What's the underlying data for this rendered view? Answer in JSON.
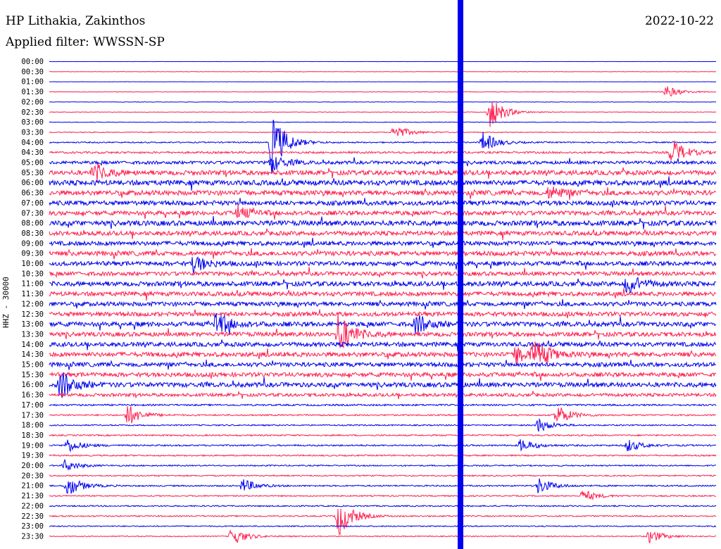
{
  "header": {
    "station": "HP Lithakia, Zakinthos",
    "filter": "Applied filter: WWSSN-SP",
    "date": "2022-10-22"
  },
  "axis_label": "HHZ - 30000",
  "colors": {
    "trace_a": "#0000ee",
    "trace_b": "#ff1e4f",
    "text": "#000000"
  },
  "chart_data": {
    "type": "line",
    "ylabel": "HHZ - 30000",
    "row_labels": [
      "00:00",
      "00:30",
      "01:00",
      "01:30",
      "02:00",
      "02:30",
      "03:00",
      "03:30",
      "04:00",
      "04:30",
      "05:00",
      "05:30",
      "06:00",
      "06:30",
      "07:00",
      "07:30",
      "08:00",
      "08:30",
      "09:00",
      "09:30",
      "10:00",
      "10:30",
      "11:00",
      "11:30",
      "12:00",
      "12:30",
      "13:00",
      "13:30",
      "14:00",
      "14:30",
      "15:00",
      "15:30",
      "16:00",
      "16:30",
      "17:00",
      "17:30",
      "18:00",
      "18:30",
      "19:00",
      "19:30",
      "20:00",
      "20:30",
      "21:00",
      "21:30",
      "22:00",
      "22:30",
      "23:00",
      "23:30"
    ],
    "row_noise": [
      0.15,
      0.3,
      0.25,
      0.4,
      0.3,
      0.4,
      0.4,
      0.6,
      0.9,
      1.4,
      2.2,
      3.2,
      3.5,
      3.4,
      3.2,
      3.0,
      3.5,
      3.0,
      3.0,
      3.2,
      3.0,
      2.8,
      3.2,
      3.0,
      3.0,
      3.0,
      3.2,
      3.0,
      3.0,
      3.2,
      3.0,
      3.0,
      3.2,
      2.2,
      1.2,
      1.0,
      0.9,
      1.0,
      1.1,
      1.0,
      0.9,
      0.9,
      1.0,
      0.9,
      0.9,
      0.9,
      0.8,
      0.7
    ],
    "events": [
      {
        "row": 3,
        "minute": 27.7,
        "amp": 10
      },
      {
        "row": 5,
        "minute": 19.8,
        "amp": 25
      },
      {
        "row": 7,
        "minute": 15.5,
        "amp": 12
      },
      {
        "row": 8,
        "minute": 10.0,
        "amp": 45
      },
      {
        "row": 8,
        "minute": 19.5,
        "amp": 15
      },
      {
        "row": 9,
        "minute": 28.0,
        "amp": 20
      },
      {
        "row": 10,
        "minute": 10.0,
        "amp": 12
      },
      {
        "row": 11,
        "minute": 2.0,
        "amp": 14
      },
      {
        "row": 13,
        "minute": 22.5,
        "amp": 10
      },
      {
        "row": 15,
        "minute": 8.5,
        "amp": 10
      },
      {
        "row": 20,
        "minute": 6.5,
        "amp": 12
      },
      {
        "row": 22,
        "minute": 26.0,
        "amp": 14
      },
      {
        "row": 26,
        "minute": 7.5,
        "amp": 18
      },
      {
        "row": 26,
        "minute": 16.5,
        "amp": 14
      },
      {
        "row": 27,
        "minute": 13.0,
        "amp": 30
      },
      {
        "row": 29,
        "minute": 21.0,
        "amp": 14
      },
      {
        "row": 29,
        "minute": 21.8,
        "amp": 22
      },
      {
        "row": 32,
        "minute": 0.5,
        "amp": 20
      },
      {
        "row": 35,
        "minute": 3.5,
        "amp": 16
      },
      {
        "row": 35,
        "minute": 22.8,
        "amp": 16
      },
      {
        "row": 36,
        "minute": 22.0,
        "amp": 10
      },
      {
        "row": 38,
        "minute": 0.8,
        "amp": 10
      },
      {
        "row": 38,
        "minute": 21.2,
        "amp": 9
      },
      {
        "row": 38,
        "minute": 26.0,
        "amp": 9
      },
      {
        "row": 40,
        "minute": 0.7,
        "amp": 8
      },
      {
        "row": 42,
        "minute": 0.8,
        "amp": 16
      },
      {
        "row": 42,
        "minute": 8.7,
        "amp": 10
      },
      {
        "row": 42,
        "minute": 22.0,
        "amp": 12
      },
      {
        "row": 43,
        "minute": 24.0,
        "amp": 9
      },
      {
        "row": 45,
        "minute": 13.0,
        "amp": 30
      },
      {
        "row": 47,
        "minute": 8.2,
        "amp": 14
      },
      {
        "row": 47,
        "minute": 27.0,
        "amp": 10
      }
    ]
  }
}
